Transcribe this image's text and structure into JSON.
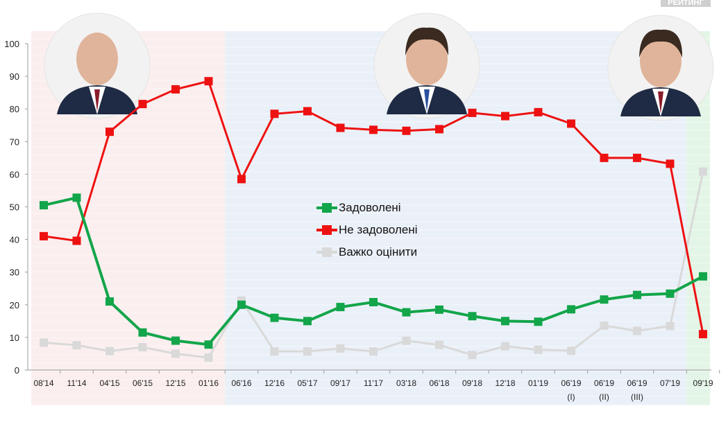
{
  "badge": "РЕЙТИНГ",
  "chart_data": {
    "type": "line",
    "ylim": [
      0,
      100
    ],
    "yticks": [
      0,
      10,
      20,
      30,
      40,
      50,
      60,
      70,
      80,
      90,
      100
    ],
    "grid": true,
    "legend_placement": "center",
    "categories": [
      "08'14",
      "11'14",
      "04'15",
      "06'15",
      "12'15",
      "01'16",
      "06'16",
      "12'16",
      "05'17",
      "09'17",
      "11'17",
      "03'18",
      "06'18",
      "09'18",
      "12'18",
      "01'19",
      "06'19 (I)",
      "06'19 (II)",
      "06'19 (III)",
      "07'19",
      "09'19"
    ],
    "series": [
      {
        "name": "Задоволені",
        "color": "#12a54a",
        "values": [
          50.5,
          52.8,
          21,
          11.5,
          9,
          7.8,
          20,
          16,
          15,
          19.3,
          20.8,
          17.7,
          18.5,
          16.5,
          15,
          14.8,
          18.6,
          21.6,
          23,
          23.4,
          28.7
        ]
      },
      {
        "name": "Не задоволені",
        "color": "#ee1111",
        "values": [
          41,
          39.6,
          73,
          81.5,
          86,
          88.5,
          58.5,
          78.5,
          79.3,
          74.2,
          73.6,
          73.3,
          73.8,
          78.8,
          77.8,
          79,
          75.5,
          65,
          65,
          63.2,
          11
        ]
      },
      {
        "name": "Важко оцінити",
        "color": "#d9d9d9",
        "values": [
          8.4,
          7.6,
          5.8,
          7,
          5,
          3.8,
          21.3,
          5.7,
          5.7,
          6.6,
          5.7,
          9,
          7.7,
          4.6,
          7.3,
          6.2,
          5.9,
          13.6,
          12,
          13.5,
          60.8
        ]
      }
    ],
    "background_periods": [
      {
        "from": "08'14",
        "to": "01'16",
        "color": "#fbeeee"
      },
      {
        "from": "06'16",
        "to": "07'19",
        "color": "#eaf0f8"
      },
      {
        "from": "09'19",
        "to": "09'19",
        "color": "#e3f5e6"
      }
    ]
  }
}
